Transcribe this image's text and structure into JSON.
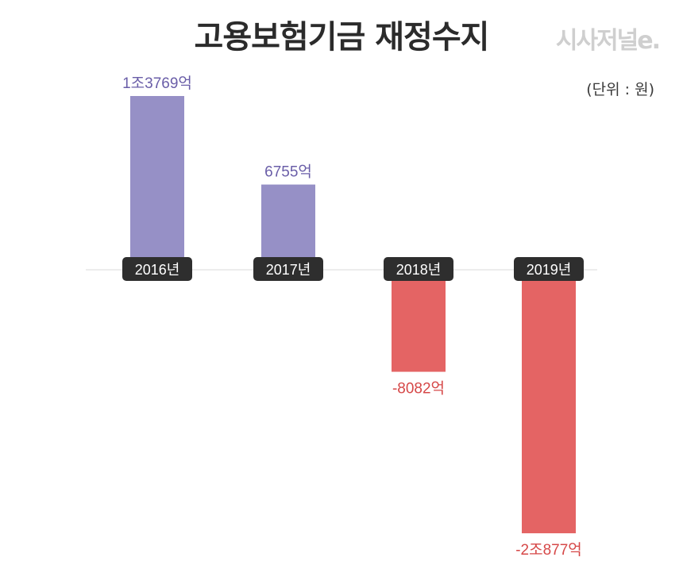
{
  "header": {
    "title": "고용보험기금 재정수지",
    "logo_text": "시사저널e.",
    "unit_label": "(단위 : 원)"
  },
  "colors": {
    "positive_bar": "#9690c6",
    "negative_bar": "#e46464",
    "positive_label": "#6a5ea8",
    "negative_label": "#d64848",
    "year_pill": "#2e2e2e",
    "axis": "#d9d9d9"
  },
  "chart_data": {
    "type": "bar",
    "title": "고용보험기금 재정수지",
    "xlabel": "",
    "ylabel": "",
    "unit": "(단위 : 원)",
    "grid": false,
    "legend": "none",
    "categories": [
      "2016년",
      "2017년",
      "2018년",
      "2019년"
    ],
    "values": [
      13769,
      6755,
      -8082,
      -20877
    ],
    "value_labels": [
      "1조3769억",
      "6755억",
      "-8082억",
      "-2조877억"
    ],
    "ylim": [
      -20877,
      13769
    ]
  }
}
